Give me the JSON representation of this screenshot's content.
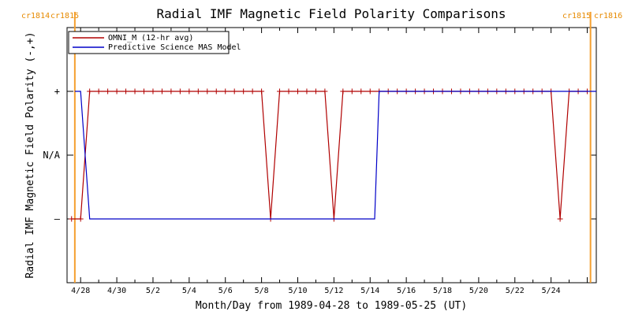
{
  "chart_data": {
    "type": "line",
    "title": "Radial IMF Magnetic Field Polarity Comparisons",
    "xlabel": "Month/Day from 1989-04-28 to 1989-05-25 (UT)",
    "ylabel": "Radial IMF Magnetic Field Polarity (-,+)",
    "x_tick_labels": [
      "4/28",
      "4/30",
      "5/2",
      "5/4",
      "5/6",
      "5/8",
      "5/10",
      "5/12",
      "5/14",
      "5/16",
      "5/18",
      "5/20",
      "5/22",
      "5/24"
    ],
    "x_tick_days": [
      0,
      2,
      4,
      6,
      8,
      10,
      12,
      14,
      16,
      18,
      20,
      22,
      24,
      26
    ],
    "x_range_days": [
      -0.75,
      28.5
    ],
    "y_levels": [
      {
        "label": "+",
        "value": 1
      },
      {
        "label": "N/A",
        "value": 0
      },
      {
        "label": "–",
        "value": -1
      }
    ],
    "ylim": [
      -2,
      2
    ],
    "legend_position": "top-left",
    "carrington_markers": [
      {
        "left_label": "cr1814",
        "right_label": "cr1815",
        "day": -0.32
      },
      {
        "left_label": "cr1815",
        "right_label": "cr1816",
        "day": 28.18
      }
    ],
    "series": [
      {
        "name": "OMNI_M (12-hr avg)",
        "color": "#b00000",
        "markers": true,
        "x_days": [
          -0.5,
          0,
          0.5,
          1,
          1.5,
          2,
          2.5,
          3,
          3.5,
          4,
          4.5,
          5,
          5.5,
          6,
          6.5,
          7,
          7.5,
          8,
          8.5,
          9,
          9.5,
          10,
          10.5,
          11,
          11.5,
          12,
          12.5,
          13,
          13.5,
          14,
          14.5,
          15,
          15.5,
          16,
          16.5,
          17,
          17.5,
          18,
          18.5,
          19,
          19.5,
          20,
          20.5,
          21,
          21.5,
          22,
          22.5,
          23,
          23.5,
          24,
          24.5,
          25,
          25.5,
          26,
          26.5,
          27,
          27.5,
          28
        ],
        "values": [
          -1,
          -1,
          1,
          1,
          1,
          1,
          1,
          1,
          1,
          1,
          1,
          1,
          1,
          1,
          1,
          1,
          1,
          1,
          1,
          1,
          1,
          1,
          -1,
          1,
          1,
          1,
          1,
          1,
          1,
          -1,
          1,
          1,
          1,
          1,
          1,
          1,
          1,
          1,
          1,
          1,
          1,
          1,
          1,
          1,
          1,
          1,
          1,
          1,
          1,
          1,
          1,
          1,
          1,
          1,
          -1,
          1,
          1,
          1
        ]
      },
      {
        "name": "Predictive Science MAS Model",
        "color": "#0000c8",
        "markers": false,
        "points": [
          [
            -0.32,
            1
          ],
          [
            0,
            1
          ],
          [
            0.5,
            -1
          ],
          [
            16.25,
            -1
          ],
          [
            16.5,
            1
          ],
          [
            28.5,
            1
          ]
        ]
      }
    ]
  }
}
